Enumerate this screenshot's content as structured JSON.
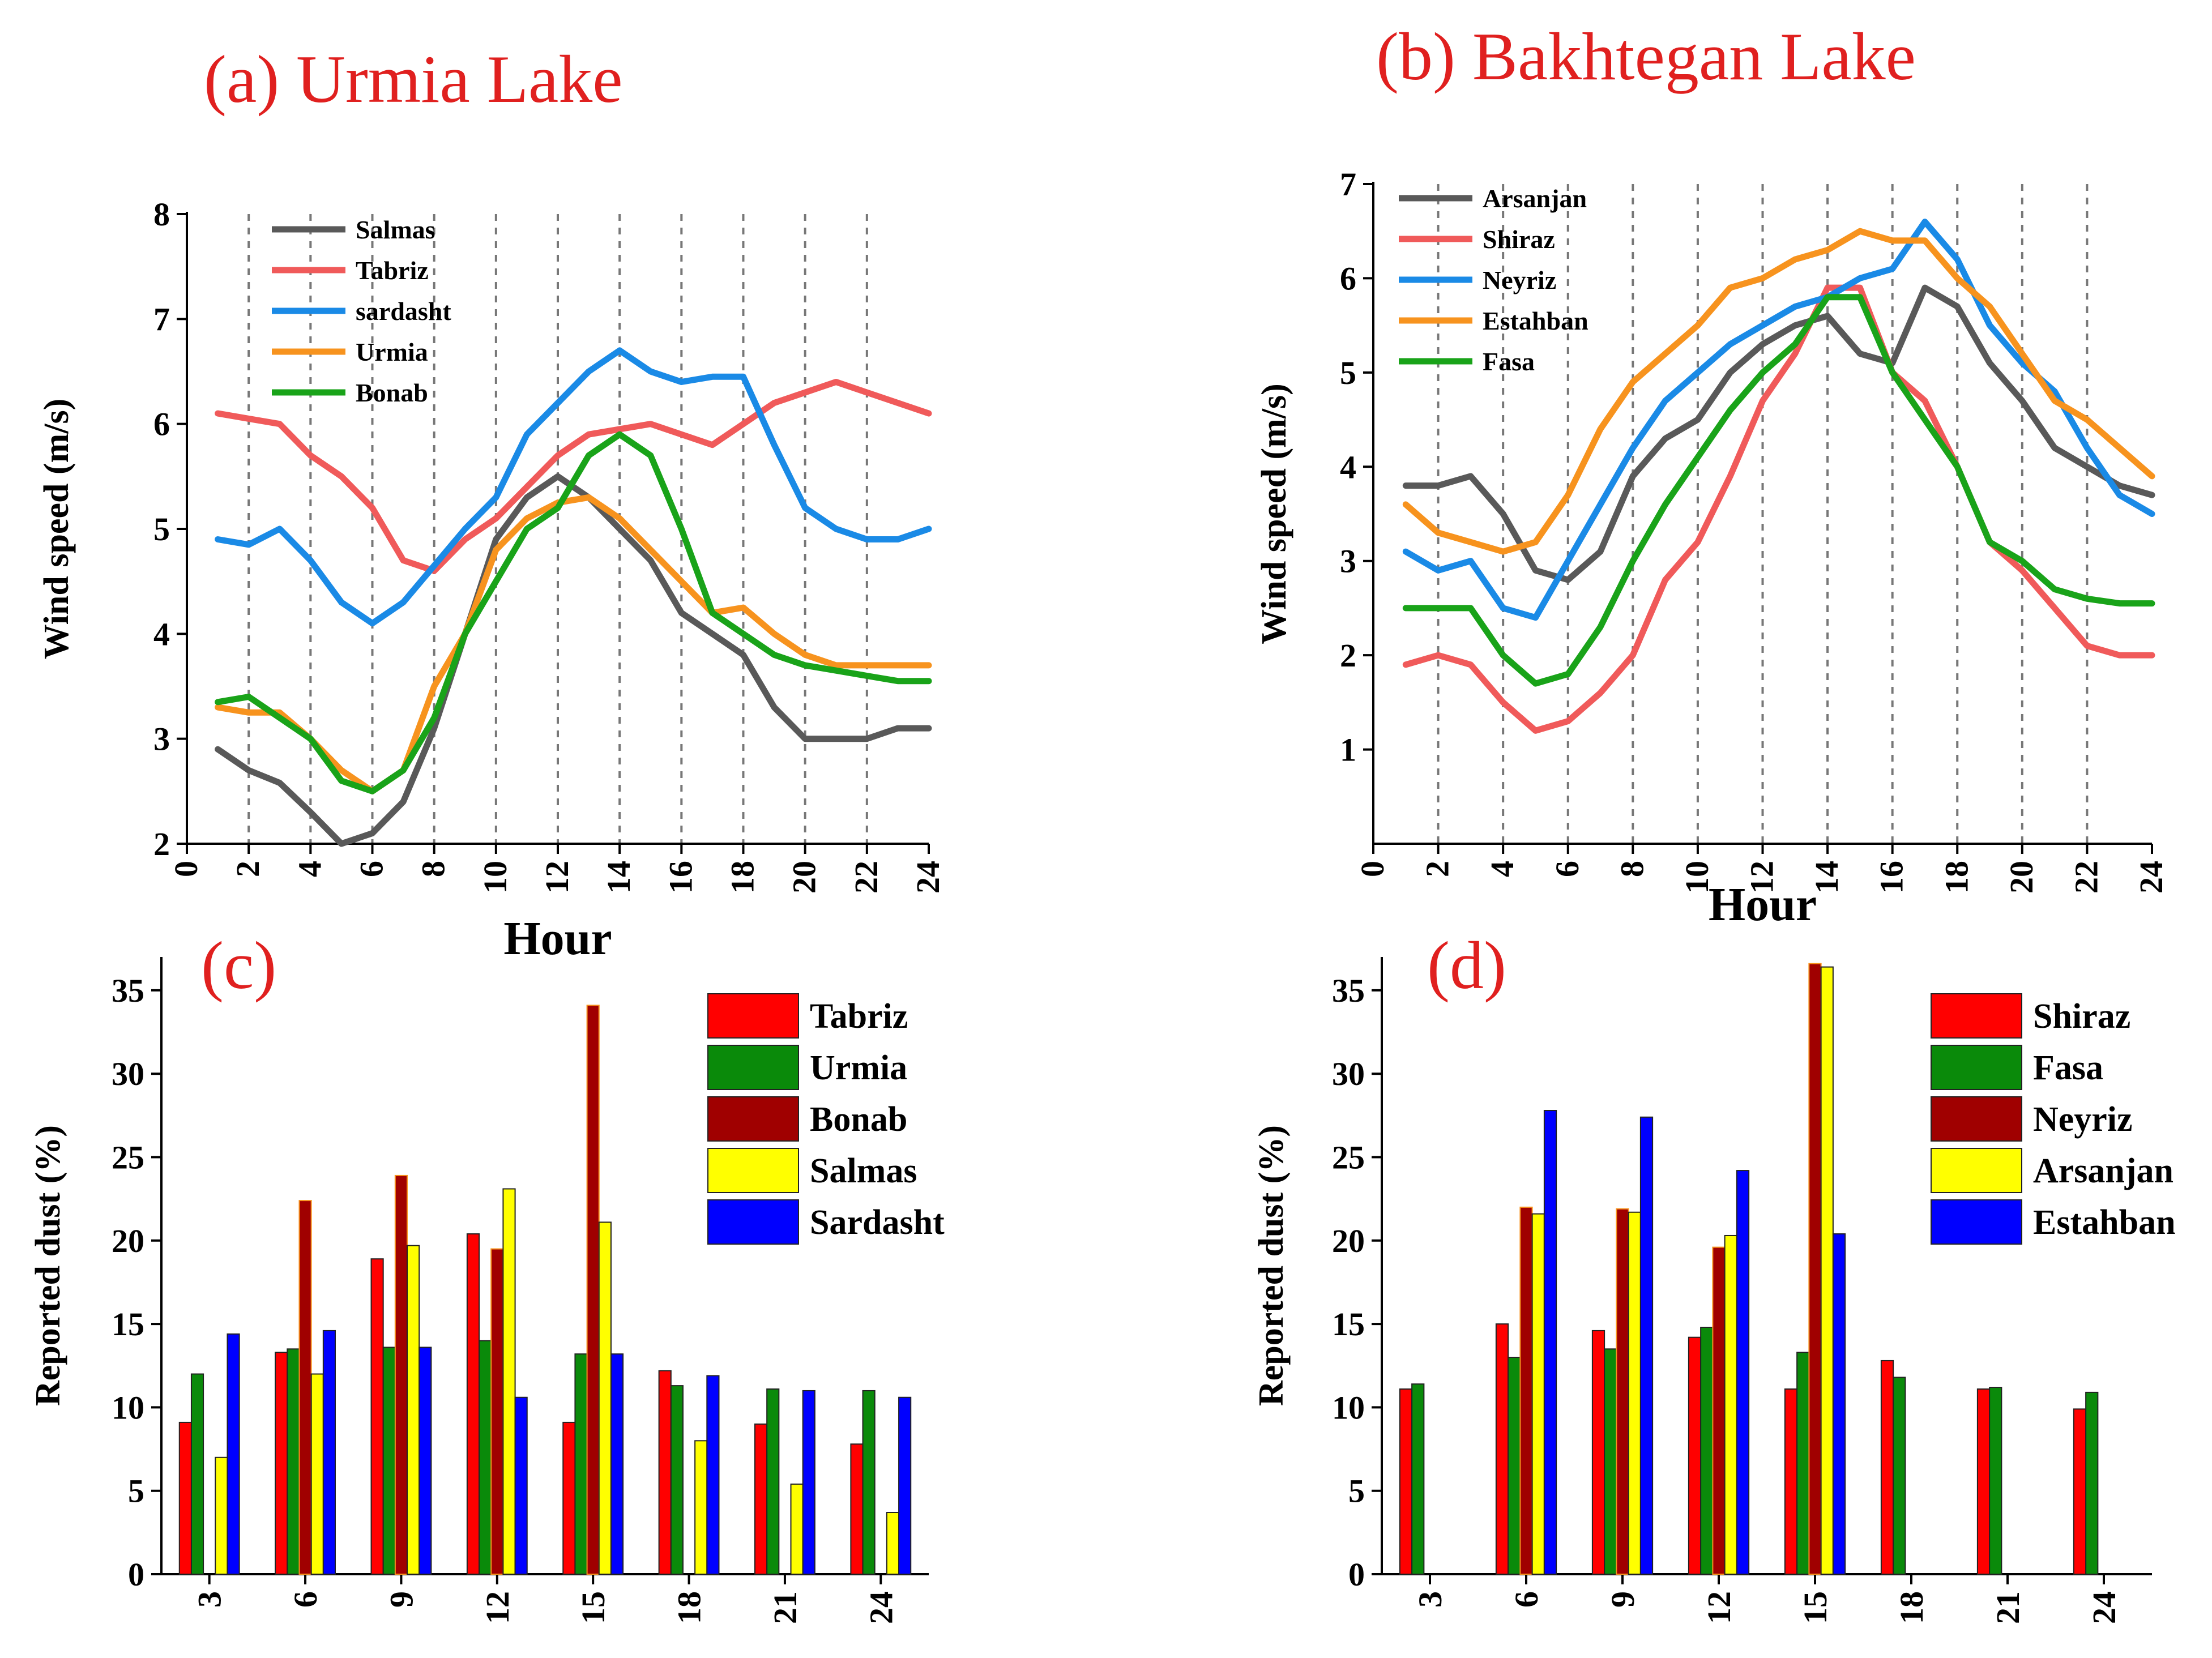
{
  "chart_data": [
    {
      "id": "a",
      "type": "line",
      "title": "(a) Urmia Lake",
      "xlabel": "Hour",
      "ylabel": "Wind speed (m/s)",
      "xlim": [
        0,
        24
      ],
      "ylim": [
        2,
        8
      ],
      "xticks": [
        0,
        2,
        4,
        6,
        8,
        10,
        12,
        14,
        16,
        18,
        20,
        22,
        24
      ],
      "yticks": [
        2,
        3,
        4,
        5,
        6,
        7,
        8
      ],
      "x": [
        1,
        2,
        3,
        4,
        5,
        6,
        7,
        8,
        9,
        10,
        11,
        12,
        13,
        14,
        15,
        16,
        17,
        18,
        19,
        20,
        21,
        22,
        23,
        24
      ],
      "series": [
        {
          "name": "Salmas",
          "color": "#595959",
          "values": [
            2.9,
            2.7,
            2.58,
            2.3,
            2.0,
            2.1,
            2.4,
            3.1,
            4.0,
            4.9,
            5.3,
            5.5,
            5.3,
            5.0,
            4.7,
            4.2,
            4.0,
            3.8,
            3.3,
            3.0,
            3.0,
            3.0,
            3.1,
            3.1
          ]
        },
        {
          "name": "Tabriz",
          "color": "#f05a5a",
          "values": [
            6.1,
            6.05,
            6.0,
            5.7,
            5.5,
            5.2,
            4.7,
            4.6,
            4.9,
            5.1,
            5.4,
            5.7,
            5.9,
            5.95,
            6.0,
            5.9,
            5.8,
            6.0,
            6.2,
            6.3,
            6.4,
            6.3,
            6.2,
            6.1
          ]
        },
        {
          "name": "sardasht",
          "color": "#1a8ae6",
          "values": [
            4.9,
            4.85,
            5.0,
            4.7,
            4.3,
            4.1,
            4.3,
            4.65,
            5.0,
            5.3,
            5.9,
            6.2,
            6.5,
            6.7,
            6.5,
            6.4,
            6.45,
            6.45,
            5.8,
            5.2,
            5.0,
            4.9,
            4.9,
            5.0
          ]
        },
        {
          "name": "Urmia",
          "color": "#f7931e",
          "values": [
            3.3,
            3.25,
            3.25,
            3.0,
            2.7,
            2.5,
            2.7,
            3.5,
            4.0,
            4.8,
            5.1,
            5.25,
            5.3,
            5.1,
            4.8,
            4.5,
            4.2,
            4.25,
            4.0,
            3.8,
            3.7,
            3.7,
            3.7,
            3.7
          ]
        },
        {
          "name": "Bonab",
          "color": "#19a319",
          "values": [
            3.35,
            3.4,
            3.2,
            3.0,
            2.6,
            2.5,
            2.7,
            3.2,
            4.0,
            4.5,
            5.0,
            5.2,
            5.7,
            5.9,
            5.7,
            5.0,
            4.2,
            4.0,
            3.8,
            3.7,
            3.65,
            3.6,
            3.55,
            3.55
          ]
        }
      ]
    },
    {
      "id": "b",
      "type": "line",
      "title": "(b) Bakhtegan Lake",
      "xlabel": "Hour",
      "ylabel": "Wind speed (m/s)",
      "xlim": [
        0,
        24
      ],
      "ylim": [
        0,
        7
      ],
      "xticks": [
        0,
        2,
        4,
        6,
        8,
        10,
        12,
        14,
        16,
        18,
        20,
        22,
        24
      ],
      "yticks": [
        1,
        2,
        3,
        4,
        5,
        6,
        7
      ],
      "x": [
        1,
        2,
        3,
        4,
        5,
        6,
        7,
        8,
        9,
        10,
        11,
        12,
        13,
        14,
        15,
        16,
        17,
        18,
        19,
        20,
        21,
        22,
        23,
        24
      ],
      "series": [
        {
          "name": "Arsanjan",
          "color": "#595959",
          "values": [
            3.8,
            3.8,
            3.9,
            3.5,
            2.9,
            2.8,
            3.1,
            3.9,
            4.3,
            4.5,
            5.0,
            5.3,
            5.5,
            5.6,
            5.2,
            5.1,
            5.9,
            5.7,
            5.1,
            4.7,
            4.2,
            4.0,
            3.8,
            3.7
          ]
        },
        {
          "name": "Shiraz",
          "color": "#f05a5a",
          "values": [
            1.9,
            2.0,
            1.9,
            1.5,
            1.2,
            1.3,
            1.6,
            2.0,
            2.8,
            3.2,
            3.9,
            4.7,
            5.2,
            5.9,
            5.9,
            5.0,
            4.7,
            4.0,
            3.2,
            2.9,
            2.5,
            2.1,
            2.0,
            2.0
          ]
        },
        {
          "name": "Neyriz",
          "color": "#1a8ae6",
          "values": [
            3.1,
            2.9,
            3.0,
            2.5,
            2.4,
            3.0,
            3.6,
            4.2,
            4.7,
            5.0,
            5.3,
            5.5,
            5.7,
            5.8,
            6.0,
            6.1,
            6.6,
            6.2,
            5.5,
            5.1,
            4.8,
            4.2,
            3.7,
            3.5
          ]
        },
        {
          "name": "Estahban",
          "color": "#f7931e",
          "values": [
            3.6,
            3.3,
            3.2,
            3.1,
            3.2,
            3.7,
            4.4,
            4.9,
            5.2,
            5.5,
            5.9,
            6.0,
            6.2,
            6.3,
            6.5,
            6.4,
            6.4,
            6.0,
            5.7,
            5.2,
            4.7,
            4.5,
            4.2,
            3.9
          ]
        },
        {
          "name": "Fasa",
          "color": "#19a319",
          "values": [
            2.5,
            2.5,
            2.5,
            2.0,
            1.7,
            1.8,
            2.3,
            3.0,
            3.6,
            4.1,
            4.6,
            5.0,
            5.3,
            5.8,
            5.8,
            5.0,
            4.5,
            4.0,
            3.2,
            3.0,
            2.7,
            2.6,
            2.55,
            2.55
          ]
        }
      ]
    },
    {
      "id": "c",
      "type": "bar",
      "title": "(c)",
      "xlabel": "",
      "ylabel": "Reported dust (%)",
      "ylim": [
        0,
        37
      ],
      "yticks": [
        0,
        5,
        10,
        15,
        20,
        25,
        30,
        35
      ],
      "categories": [
        "3",
        "6",
        "9",
        "12",
        "15",
        "18",
        "21",
        "24"
      ],
      "series": [
        {
          "name": "Tabriz",
          "color": "#ff0000",
          "values": [
            9.1,
            13.3,
            18.9,
            20.4,
            9.1,
            12.2,
            9.0,
            7.8
          ]
        },
        {
          "name": "Urmia",
          "color": "#0a8a0a",
          "values": [
            12.0,
            13.5,
            13.6,
            14.0,
            13.2,
            11.3,
            11.1,
            11.0
          ]
        },
        {
          "name": "Bonab",
          "color": "#a00000",
          "values": [
            null,
            22.4,
            23.9,
            19.5,
            34.1,
            null,
            null,
            null
          ]
        },
        {
          "name": "Salmas",
          "color": "#ffff00",
          "values": [
            7.0,
            12.0,
            19.7,
            23.1,
            21.1,
            8.0,
            5.4,
            3.7
          ]
        },
        {
          "name": "Sardasht",
          "color": "#0000ff",
          "values": [
            14.4,
            14.6,
            13.6,
            10.6,
            13.2,
            11.9,
            11.0,
            10.6
          ]
        }
      ]
    },
    {
      "id": "d",
      "type": "bar",
      "title": "(d)",
      "xlabel": "",
      "ylabel": "Reported dust (%)",
      "ylim": [
        0,
        37
      ],
      "yticks": [
        0,
        5,
        10,
        15,
        20,
        25,
        30,
        35
      ],
      "categories": [
        "3",
        "6",
        "9",
        "12",
        "15",
        "18",
        "21",
        "24"
      ],
      "series": [
        {
          "name": "Shiraz",
          "color": "#ff0000",
          "values": [
            11.1,
            15.0,
            14.6,
            14.2,
            11.1,
            12.8,
            11.1,
            9.9
          ]
        },
        {
          "name": "Fasa",
          "color": "#0a8a0a",
          "values": [
            11.4,
            13.0,
            13.5,
            14.8,
            13.3,
            11.8,
            11.2,
            10.9
          ]
        },
        {
          "name": "Neyriz",
          "color": "#a00000",
          "values": [
            null,
            22.0,
            21.9,
            19.6,
            36.6,
            null,
            null,
            null
          ]
        },
        {
          "name": "Arsanjan",
          "color": "#ffff00",
          "values": [
            null,
            21.6,
            21.7,
            20.3,
            36.4,
            null,
            null,
            null
          ]
        },
        {
          "name": "Estahban",
          "color": "#0000ff",
          "values": [
            null,
            27.8,
            27.4,
            24.2,
            20.4,
            null,
            null,
            null
          ]
        }
      ]
    }
  ]
}
